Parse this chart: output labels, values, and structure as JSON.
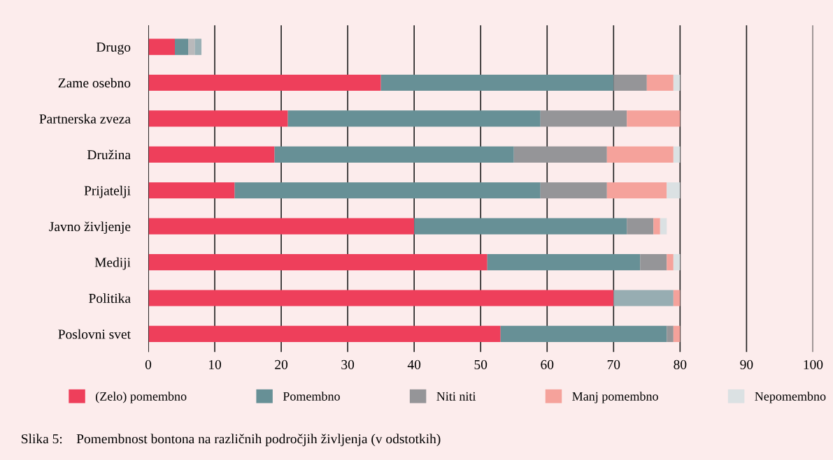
{
  "chart_data": {
    "type": "bar",
    "orientation": "horizontal",
    "stacked": true,
    "categories": [
      "Drugo",
      "Zame osebno",
      "Partnerska zveza",
      "Družina",
      "Prijatelji",
      "Javno življenje",
      "Mediji",
      "Politika",
      "Poslovni svet"
    ],
    "series": [
      {
        "name": "(Zelo) pomembno",
        "color": "#ee3f5b",
        "values": [
          4,
          35,
          21,
          19,
          13,
          40,
          51,
          70,
          53
        ]
      },
      {
        "name": "Pomembno",
        "color": "#679096",
        "colors": [
          "#679096",
          "#679096",
          "#679096",
          "#679096",
          "#679096",
          "#679096",
          "#679096",
          "#97adb2",
          "#679096"
        ],
        "values": [
          2,
          35,
          38,
          36,
          46,
          32,
          23,
          9,
          25
        ]
      },
      {
        "name": "Niti niti",
        "color": "#959598",
        "colors": [
          "#b9b9bb",
          "#959598",
          "#959598",
          "#959598",
          "#959598",
          "#959598",
          "#959598",
          "#959598",
          "#959598"
        ],
        "values": [
          1,
          5,
          13,
          14,
          10,
          4,
          4,
          null,
          1
        ]
      },
      {
        "name": "Manj pomembno",
        "color": "#f5a29b",
        "values": [
          null,
          4,
          8,
          10,
          9,
          1,
          1,
          1,
          1
        ]
      },
      {
        "name": "Nepomembno",
        "color": "#dbe1e3",
        "colors": [
          "#9ab0b5",
          "#dbe1e3",
          "#dbe1e3",
          "#dbe1e3",
          "#dbe1e3",
          "#dbe1e3",
          "#dbe1e3",
          "#dbe1e3",
          "#dbe1e3"
        ],
        "values": [
          1,
          1,
          null,
          1,
          2,
          1,
          1,
          null,
          null
        ]
      }
    ],
    "xlim": [
      0,
      100
    ],
    "xticks": [
      0,
      10,
      20,
      30,
      40,
      50,
      60,
      70,
      80,
      90,
      100
    ],
    "grid": "x",
    "legend": "bottom",
    "annotations": [
      "Slika 5:    Pomembnost bontona na različnih področjih življenja (v odstotkih)"
    ]
  }
}
